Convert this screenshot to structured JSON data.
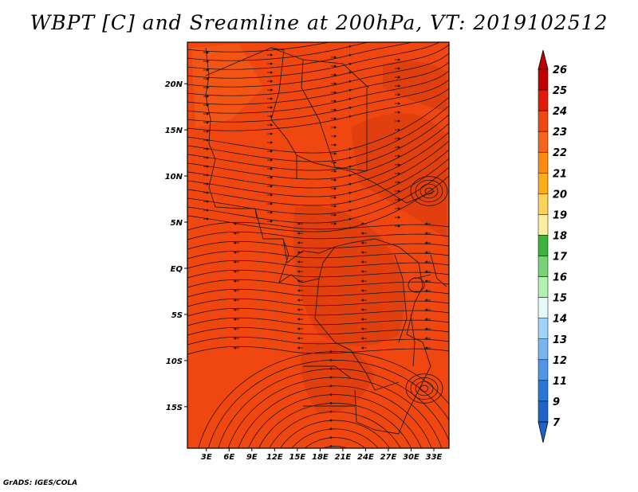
{
  "title": "WBPT [C] and Sreamline at 200hPa, VT: 2019102512",
  "credit": "GrADS: IGES/COLA",
  "map": {
    "lat_labels": [
      "20N",
      "15N",
      "10N",
      "5N",
      "EQ",
      "5S",
      "10S",
      "15S"
    ],
    "lat_values": [
      20,
      15,
      10,
      5,
      0,
      -5,
      -10,
      -15
    ],
    "lon_labels": [
      "3E",
      "6E",
      "9E",
      "12E",
      "15E",
      "18E",
      "21E",
      "24E",
      "27E",
      "30E",
      "33E"
    ],
    "lon_values": [
      3,
      6,
      9,
      12,
      15,
      18,
      21,
      24,
      27,
      30,
      33
    ],
    "lon_range": [
      0.5,
      35
    ],
    "lat_range": [
      -19.5,
      24.5
    ],
    "field_color": "#f0460f",
    "field_dark_color": "#d63a0c",
    "field_light_color": "#f5641a"
  },
  "colorbar": {
    "labels": [
      "26",
      "25",
      "24",
      "23",
      "22",
      "21",
      "20",
      "19",
      "18",
      "17",
      "16",
      "15",
      "14",
      "13",
      "12",
      "11",
      "9",
      "7"
    ],
    "colors": [
      "#c30000",
      "#e11a0a",
      "#f0460f",
      "#f5641a",
      "#fa8c0f",
      "#fcac14",
      "#fcd25a",
      "#fcf0a0",
      "#3cb43c",
      "#78d278",
      "#b4f0b4",
      "#e6fafa",
      "#a0d2fa",
      "#78b4f0",
      "#5096e6",
      "#2878dc",
      "#1e64c8"
    ]
  }
}
